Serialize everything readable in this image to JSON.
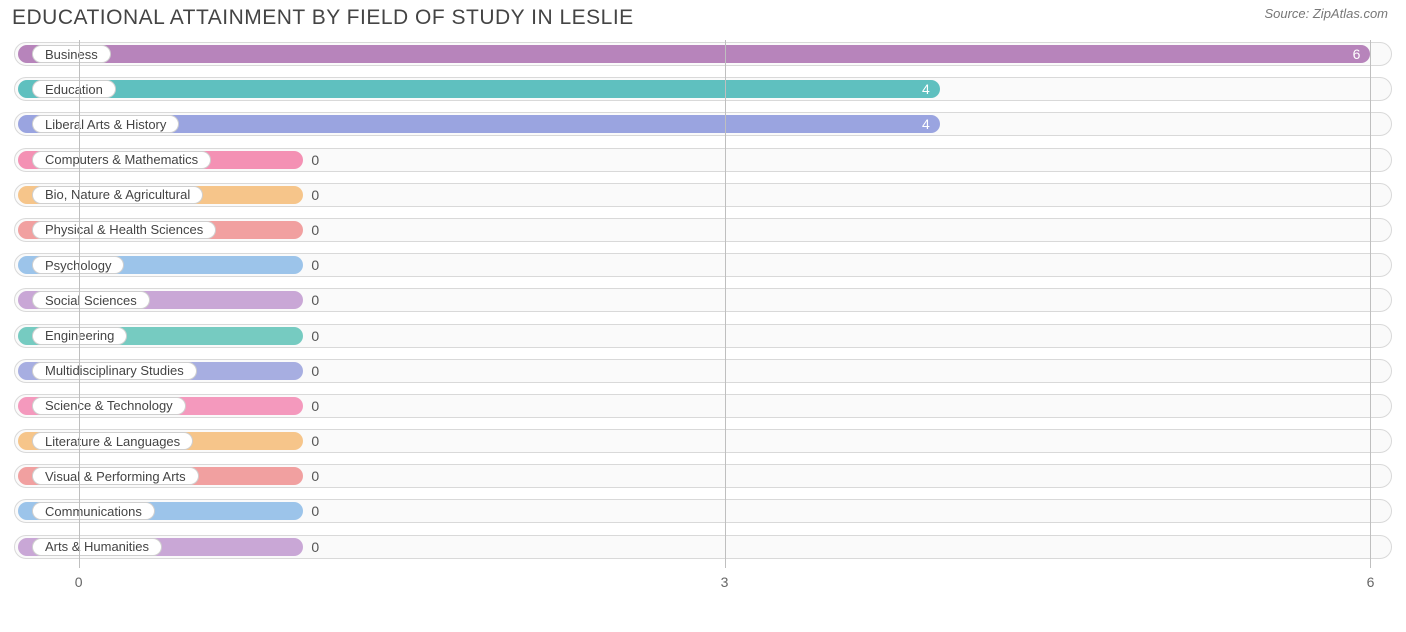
{
  "title": "EDUCATIONAL ATTAINMENT BY FIELD OF STUDY IN LESLIE",
  "source": "Source: ZipAtlas.com",
  "chart": {
    "type": "bar",
    "orientation": "horizontal",
    "background_color": "#ffffff",
    "track_border_color": "#d9d9d9",
    "track_bg_color": "#fafafa",
    "grid_color": "#bfbfbf",
    "pill_bg": "#ffffff",
    "pill_border": "#cfcfcf",
    "label_fontsize": 13,
    "value_fontsize": 14,
    "title_fontsize": 21,
    "xlim": [
      -0.3,
      6.1
    ],
    "ticks": [
      0,
      3,
      6
    ],
    "zero_fill_pct": 21,
    "categories": [
      {
        "label": "Business",
        "value": 6,
        "color": "#b784bb"
      },
      {
        "label": "Education",
        "value": 4,
        "color": "#5fc0bf"
      },
      {
        "label": "Liberal Arts & History",
        "value": 4,
        "color": "#9aa4e0"
      },
      {
        "label": "Computers & Mathematics",
        "value": 0,
        "color": "#f491b4"
      },
      {
        "label": "Bio, Nature & Agricultural",
        "value": 0,
        "color": "#f6c58a"
      },
      {
        "label": "Physical & Health Sciences",
        "value": 0,
        "color": "#f1a0a0"
      },
      {
        "label": "Psychology",
        "value": 0,
        "color": "#9cc4ea"
      },
      {
        "label": "Social Sciences",
        "value": 0,
        "color": "#c9a7d6"
      },
      {
        "label": "Engineering",
        "value": 0,
        "color": "#76cbc1"
      },
      {
        "label": "Multidisciplinary Studies",
        "value": 0,
        "color": "#a7aee1"
      },
      {
        "label": "Science & Technology",
        "value": 0,
        "color": "#f499bd"
      },
      {
        "label": "Literature & Languages",
        "value": 0,
        "color": "#f6c58a"
      },
      {
        "label": "Visual & Performing Arts",
        "value": 0,
        "color": "#f1a0a0"
      },
      {
        "label": "Communications",
        "value": 0,
        "color": "#9cc4ea"
      },
      {
        "label": "Arts & Humanities",
        "value": 0,
        "color": "#c9a7d6"
      }
    ]
  }
}
